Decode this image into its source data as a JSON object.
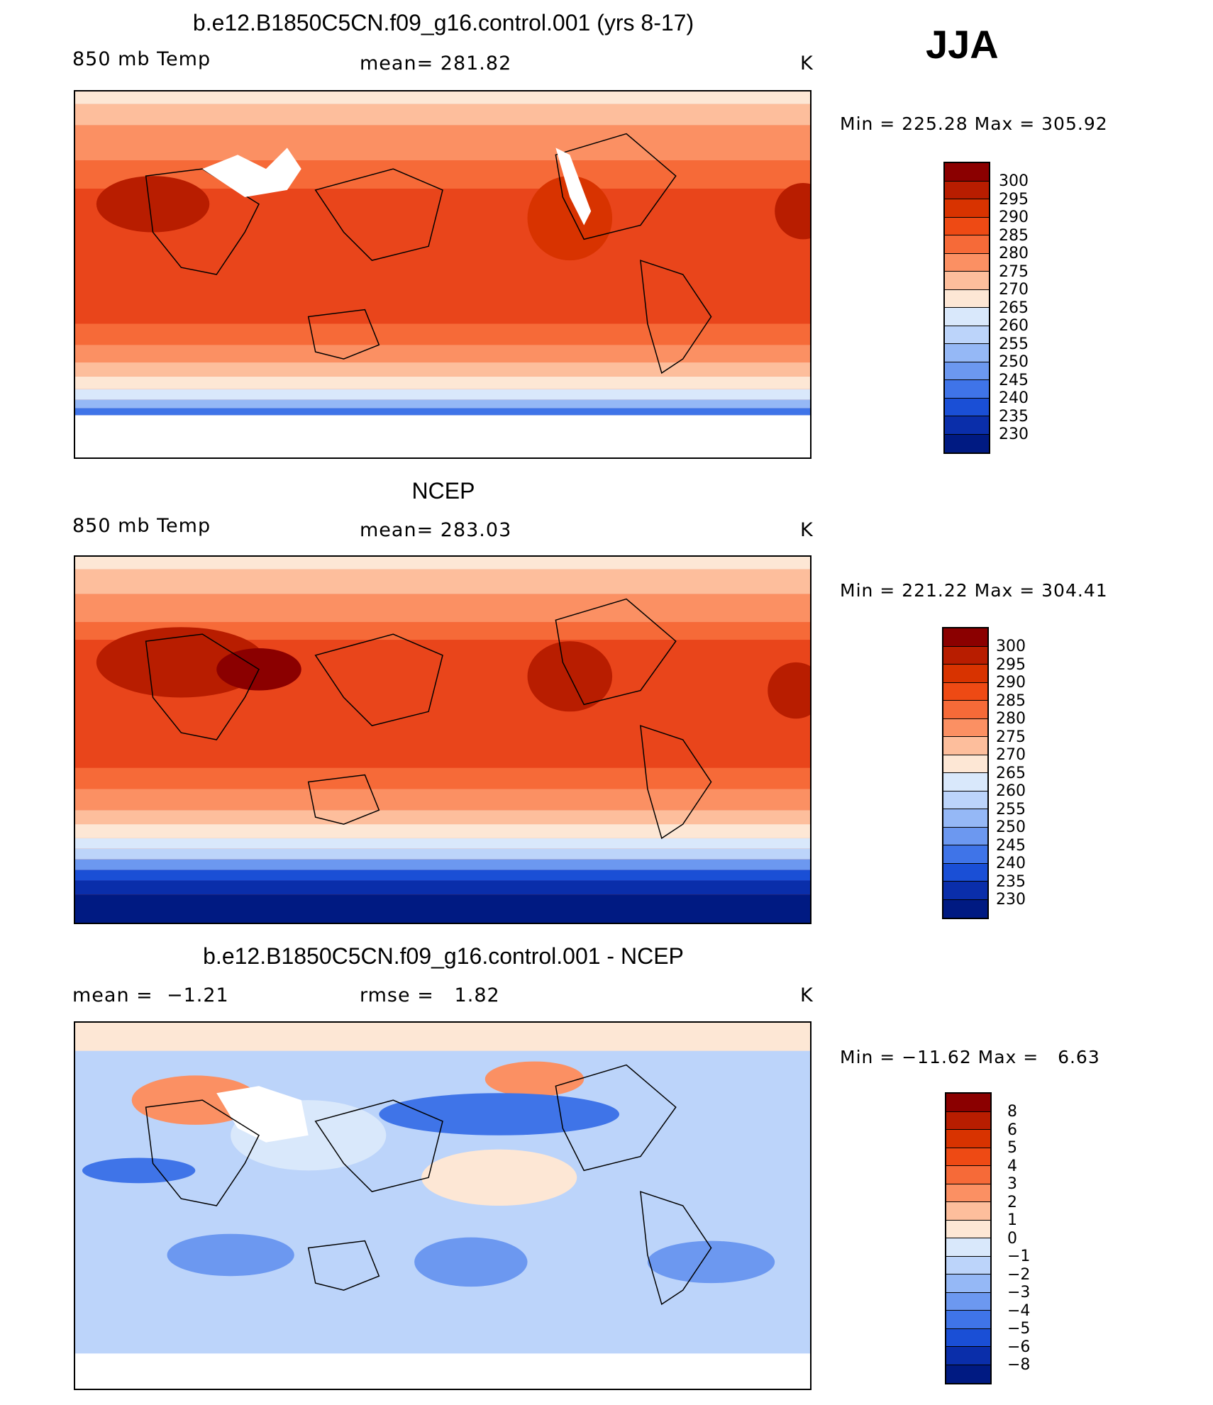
{
  "season": "JJA",
  "panels": [
    {
      "title": "b.e12.B1850C5CN.f09_g16.control.001 (yrs 8-17)",
      "left_label": "850 mb Temp",
      "center_label": "mean= 281.82",
      "units": "K",
      "minmax": "Min = 225.28 Max = 305.92",
      "colorbar": {
        "labels": [
          "300",
          "295",
          "290",
          "285",
          "280",
          "275",
          "270",
          "265",
          "260",
          "255",
          "250",
          "245",
          "240",
          "235",
          "230"
        ],
        "colors": [
          "#8b0000",
          "#b81d00",
          "#d83300",
          "#ee4a14",
          "#f66a38",
          "#fb9063",
          "#fdbe9c",
          "#fde7d5",
          "#d9e8fb",
          "#bcd4fa",
          "#95b8f6",
          "#6c98f0",
          "#3f74e8",
          "#1a4fd6",
          "#0a2eaa",
          "#001a82"
        ]
      },
      "fill": "#e9451b"
    },
    {
      "title": "NCEP",
      "left_label": "850 mb Temp",
      "center_label": "mean= 283.03",
      "units": "K",
      "minmax": "Min = 221.22 Max = 304.41",
      "colorbar": {
        "labels": [
          "300",
          "295",
          "290",
          "285",
          "280",
          "275",
          "270",
          "265",
          "260",
          "255",
          "250",
          "245",
          "240",
          "235",
          "230"
        ],
        "colors": [
          "#8b0000",
          "#b81d00",
          "#d83300",
          "#ee4a14",
          "#f66a38",
          "#fb9063",
          "#fdbe9c",
          "#fde7d5",
          "#d9e8fb",
          "#bcd4fa",
          "#95b8f6",
          "#6c98f0",
          "#3f74e8",
          "#1a4fd6",
          "#0a2eaa",
          "#001a82"
        ]
      },
      "fill": "#e9451b"
    },
    {
      "title": "b.e12.B1850C5CN.f09_g16.control.001 - NCEP",
      "left_label": "mean =  −1.21",
      "center_label": "rmse =   1.82",
      "units": "K",
      "minmax": "Min = −11.62 Max =   6.63",
      "colorbar": {
        "labels": [
          "8",
          "6",
          "5",
          "4",
          "3",
          "2",
          "1",
          "0",
          "−1",
          "−2",
          "−3",
          "−4",
          "−5",
          "−6",
          "−8"
        ],
        "colors": [
          "#8b0000",
          "#b81d00",
          "#d83300",
          "#ee4a14",
          "#f66a38",
          "#fb9063",
          "#fdbe9c",
          "#fde7d5",
          "#d9e8fb",
          "#bcd4fa",
          "#95b8f6",
          "#6c98f0",
          "#3f74e8",
          "#1a4fd6",
          "#0a2eaa",
          "#001a82"
        ]
      },
      "fill": "#bcd4fa"
    }
  ],
  "chart_data": [
    {
      "type": "heatmap",
      "title": "b.e12.B1850C5CN.f09_g16.control.001 (yrs 8-17)",
      "variable": "850 mb Temp",
      "units": "K",
      "mean": 281.82,
      "min": 225.28,
      "max": 305.92,
      "contour_levels": [
        230,
        235,
        240,
        245,
        250,
        255,
        260,
        265,
        270,
        275,
        280,
        285,
        290,
        295,
        300
      ]
    },
    {
      "type": "heatmap",
      "title": "NCEP",
      "variable": "850 mb Temp",
      "units": "K",
      "mean": 283.03,
      "min": 221.22,
      "max": 304.41,
      "contour_levels": [
        230,
        235,
        240,
        245,
        250,
        255,
        260,
        265,
        270,
        275,
        280,
        285,
        290,
        295,
        300
      ]
    },
    {
      "type": "heatmap",
      "title": "b.e12.B1850C5CN.f09_g16.control.001 - NCEP",
      "units": "K",
      "mean": -1.21,
      "rmse": 1.82,
      "min": -11.62,
      "max": 6.63,
      "contour_levels": [
        -8,
        -6,
        -5,
        -4,
        -3,
        -2,
        -1,
        0,
        1,
        2,
        3,
        4,
        5,
        6,
        8
      ]
    }
  ]
}
